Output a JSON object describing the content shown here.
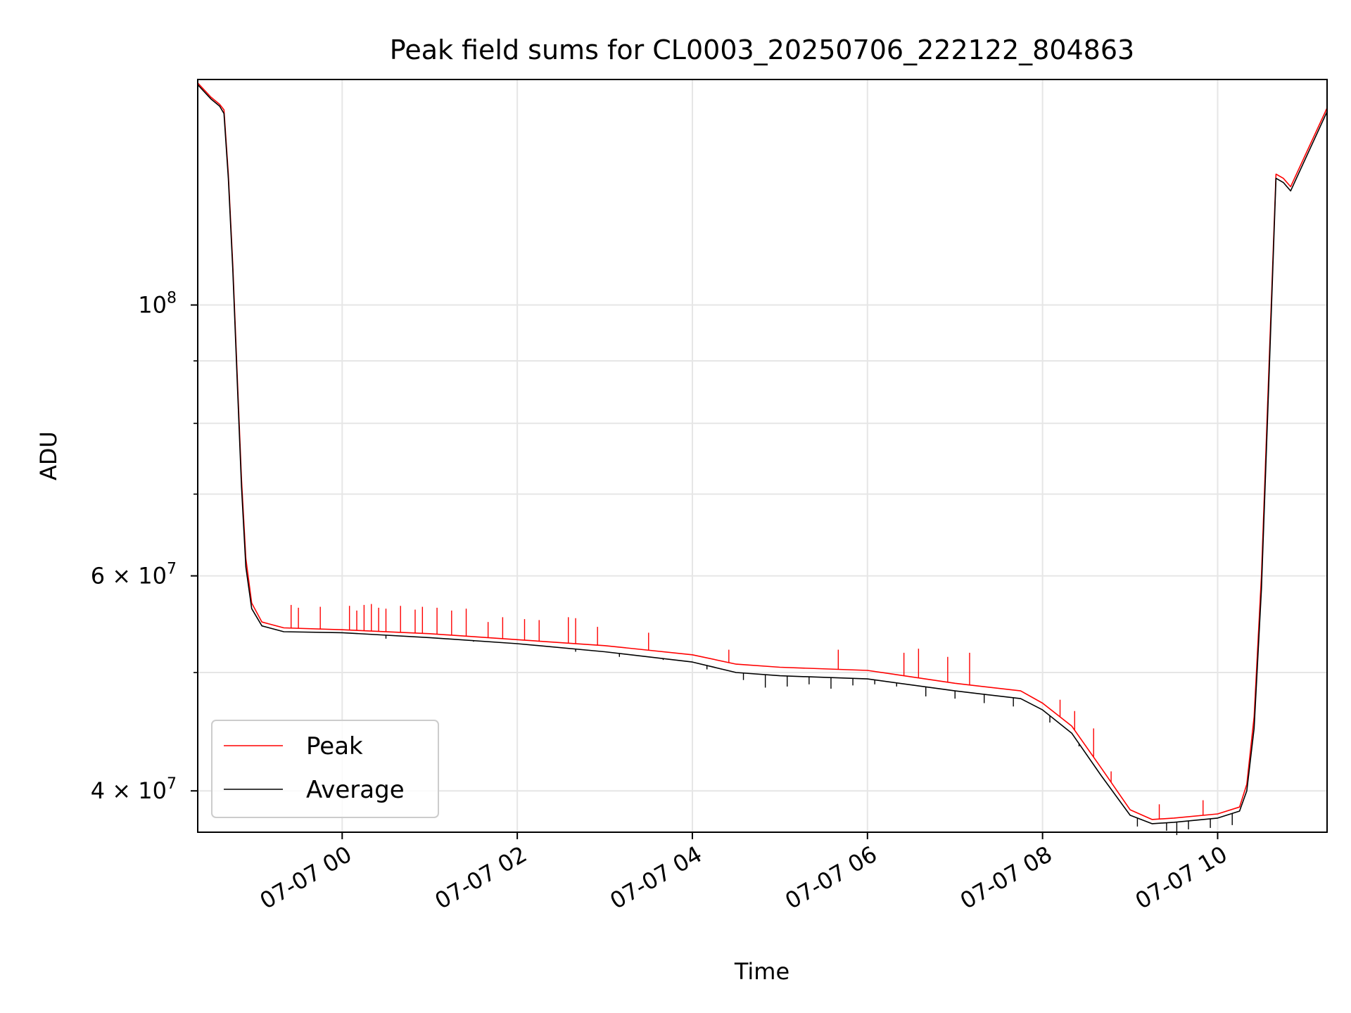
{
  "chart_data": {
    "type": "line",
    "title": "Peak field sums for CL0003_20250706_222122_804863",
    "xlabel": "Time",
    "ylabel": "ADU",
    "yscale": "log",
    "xlim": [
      "2025-07-06 22:21",
      "2025-07-07 11:15"
    ],
    "ylim": [
      37000000,
      153000000
    ],
    "grid": true,
    "legend_position": "lower-left",
    "x_ticks": [
      {
        "value": "2025-07-07 00:00",
        "label": "07-07 00"
      },
      {
        "value": "2025-07-07 02:00",
        "label": "07-07 02"
      },
      {
        "value": "2025-07-07 04:00",
        "label": "07-07 04"
      },
      {
        "value": "2025-07-07 06:00",
        "label": "07-07 06"
      },
      {
        "value": "2025-07-07 08:00",
        "label": "07-07 08"
      },
      {
        "value": "2025-07-07 10:00",
        "label": "07-07 10"
      }
    ],
    "y_major_ticks": [
      {
        "value": 100000000,
        "label_base": "10",
        "label_exp": "8",
        "label_coef": ""
      },
      {
        "value": 60000000,
        "label_base": "10",
        "label_exp": "7",
        "label_coef": "6 × "
      },
      {
        "value": 40000000,
        "label_base": "10",
        "label_exp": "7",
        "label_coef": "4 × "
      }
    ],
    "y_minor_ticks": [
      50000000,
      70000000,
      80000000,
      90000000
    ],
    "series": [
      {
        "name": "Peak",
        "color": "#ff0000",
        "points": [
          [
            "2025-07-06 22:21",
            152000000
          ],
          [
            "2025-07-06 22:30",
            148000000
          ],
          [
            "2025-07-06 22:36",
            146000000
          ],
          [
            "2025-07-06 22:39",
            144500000
          ],
          [
            "2025-07-06 22:42",
            128000000
          ],
          [
            "2025-07-06 22:45",
            108000000
          ],
          [
            "2025-07-06 22:48",
            88000000
          ],
          [
            "2025-07-06 22:51",
            72000000
          ],
          [
            "2025-07-06 22:54",
            62000000
          ],
          [
            "2025-07-06 22:58",
            57000000
          ],
          [
            "2025-07-06 23:05",
            55000000
          ],
          [
            "2025-07-06 23:20",
            54400000
          ],
          [
            "2025-07-07 00:00",
            54200000
          ],
          [
            "2025-07-07 01:00",
            53800000
          ],
          [
            "2025-07-07 02:00",
            53200000
          ],
          [
            "2025-07-07 03:00",
            52600000
          ],
          [
            "2025-07-07 04:00",
            51700000
          ],
          [
            "2025-07-07 04:30",
            50800000
          ],
          [
            "2025-07-07 05:00",
            50500000
          ],
          [
            "2025-07-07 06:00",
            50200000
          ],
          [
            "2025-07-07 07:00",
            49000000
          ],
          [
            "2025-07-07 07:45",
            48300000
          ],
          [
            "2025-07-07 08:00",
            47200000
          ],
          [
            "2025-07-07 08:20",
            45200000
          ],
          [
            "2025-07-07 08:40",
            41800000
          ],
          [
            "2025-07-07 09:00",
            38600000
          ],
          [
            "2025-07-07 09:15",
            37900000
          ],
          [
            "2025-07-07 09:30",
            38000000
          ],
          [
            "2025-07-07 10:00",
            38300000
          ],
          [
            "2025-07-07 10:15",
            38800000
          ],
          [
            "2025-07-07 10:20",
            40500000
          ],
          [
            "2025-07-07 10:25",
            46000000
          ],
          [
            "2025-07-07 10:30",
            60000000
          ],
          [
            "2025-07-07 10:35",
            88000000
          ],
          [
            "2025-07-07 10:40",
            128000000
          ],
          [
            "2025-07-07 10:45",
            127000000
          ],
          [
            "2025-07-07 10:50",
            125000000
          ],
          [
            "2025-07-07 11:15",
            145000000
          ]
        ]
      },
      {
        "name": "Average",
        "color": "#000000",
        "points": [
          [
            "2025-07-06 22:21",
            151500000
          ],
          [
            "2025-07-06 22:30",
            147500000
          ],
          [
            "2025-07-06 22:36",
            145500000
          ],
          [
            "2025-07-06 22:39",
            143500000
          ],
          [
            "2025-07-06 22:42",
            127000000
          ],
          [
            "2025-07-06 22:45",
            107000000
          ],
          [
            "2025-07-06 22:48",
            87000000
          ],
          [
            "2025-07-06 22:51",
            71000000
          ],
          [
            "2025-07-06 22:54",
            61000000
          ],
          [
            "2025-07-06 22:58",
            56400000
          ],
          [
            "2025-07-06 23:05",
            54600000
          ],
          [
            "2025-07-06 23:20",
            54000000
          ],
          [
            "2025-07-07 00:00",
            53900000
          ],
          [
            "2025-07-07 01:00",
            53400000
          ],
          [
            "2025-07-07 02:00",
            52800000
          ],
          [
            "2025-07-07 03:00",
            52000000
          ],
          [
            "2025-07-07 04:00",
            51000000
          ],
          [
            "2025-07-07 04:30",
            50000000
          ],
          [
            "2025-07-07 05:00",
            49700000
          ],
          [
            "2025-07-07 06:00",
            49400000
          ],
          [
            "2025-07-07 07:00",
            48300000
          ],
          [
            "2025-07-07 07:45",
            47600000
          ],
          [
            "2025-07-07 08:00",
            46600000
          ],
          [
            "2025-07-07 08:20",
            44600000
          ],
          [
            "2025-07-07 08:40",
            41200000
          ],
          [
            "2025-07-07 09:00",
            38200000
          ],
          [
            "2025-07-07 09:15",
            37600000
          ],
          [
            "2025-07-07 09:30",
            37700000
          ],
          [
            "2025-07-07 10:00",
            38000000
          ],
          [
            "2025-07-07 10:15",
            38500000
          ],
          [
            "2025-07-07 10:20",
            40000000
          ],
          [
            "2025-07-07 10:25",
            45000000
          ],
          [
            "2025-07-07 10:30",
            58500000
          ],
          [
            "2025-07-07 10:35",
            86000000
          ],
          [
            "2025-07-07 10:40",
            127000000
          ],
          [
            "2025-07-07 10:45",
            126000000
          ],
          [
            "2025-07-07 10:50",
            124000000
          ],
          [
            "2025-07-07 11:15",
            144000000
          ]
        ]
      }
    ],
    "peak_spikes": [
      [
        "2025-07-06 23:25",
        56800000
      ],
      [
        "2025-07-06 23:30",
        56500000
      ],
      [
        "2025-07-06 23:45",
        56600000
      ],
      [
        "2025-07-07 00:05",
        56700000
      ],
      [
        "2025-07-07 00:10",
        56200000
      ],
      [
        "2025-07-07 00:15",
        56800000
      ],
      [
        "2025-07-07 00:20",
        56900000
      ],
      [
        "2025-07-07 00:25",
        56500000
      ],
      [
        "2025-07-07 00:30",
        56400000
      ],
      [
        "2025-07-07 00:40",
        56700000
      ],
      [
        "2025-07-07 00:50",
        56300000
      ],
      [
        "2025-07-07 00:55",
        56600000
      ],
      [
        "2025-07-07 01:05",
        56500000
      ],
      [
        "2025-07-07 01:15",
        56200000
      ],
      [
        "2025-07-07 01:25",
        56400000
      ],
      [
        "2025-07-07 01:40",
        55000000
      ],
      [
        "2025-07-07 01:50",
        55500000
      ],
      [
        "2025-07-07 02:05",
        55300000
      ],
      [
        "2025-07-07 02:15",
        55200000
      ],
      [
        "2025-07-07 02:35",
        55500000
      ],
      [
        "2025-07-07 02:40",
        55400000
      ],
      [
        "2025-07-07 02:55",
        54500000
      ],
      [
        "2025-07-07 03:30",
        53900000
      ],
      [
        "2025-07-07 04:25",
        52200000
      ],
      [
        "2025-07-07 05:40",
        52200000
      ],
      [
        "2025-07-07 06:25",
        51900000
      ],
      [
        "2025-07-07 06:35",
        52300000
      ],
      [
        "2025-07-07 06:55",
        51500000
      ],
      [
        "2025-07-07 07:10",
        51900000
      ],
      [
        "2025-07-07 08:12",
        47500000
      ],
      [
        "2025-07-07 08:22",
        46500000
      ],
      [
        "2025-07-07 08:35",
        45000000
      ],
      [
        "2025-07-07 08:47",
        41500000
      ],
      [
        "2025-07-07 09:20",
        39000000
      ],
      [
        "2025-07-07 09:50",
        39300000
      ]
    ],
    "average_dips": [
      [
        "2025-07-07 00:30",
        53300000
      ],
      [
        "2025-07-07 01:30",
        53000000
      ],
      [
        "2025-07-07 02:40",
        52000000
      ],
      [
        "2025-07-07 03:10",
        51500000
      ],
      [
        "2025-07-07 03:40",
        51200000
      ],
      [
        "2025-07-07 04:10",
        50300000
      ],
      [
        "2025-07-07 04:35",
        49300000
      ],
      [
        "2025-07-07 04:50",
        48600000
      ],
      [
        "2025-07-07 05:05",
        48700000
      ],
      [
        "2025-07-07 05:20",
        48900000
      ],
      [
        "2025-07-07 05:35",
        48500000
      ],
      [
        "2025-07-07 05:50",
        48800000
      ],
      [
        "2025-07-07 06:05",
        48900000
      ],
      [
        "2025-07-07 06:20",
        48700000
      ],
      [
        "2025-07-07 06:40",
        47800000
      ],
      [
        "2025-07-07 07:00",
        47600000
      ],
      [
        "2025-07-07 07:20",
        47200000
      ],
      [
        "2025-07-07 07:40",
        46900000
      ],
      [
        "2025-07-07 08:05",
        45500000
      ],
      [
        "2025-07-07 08:25",
        43500000
      ],
      [
        "2025-07-07 09:05",
        37400000
      ],
      [
        "2025-07-07 09:25",
        37100000
      ],
      [
        "2025-07-07 09:32",
        36800000
      ],
      [
        "2025-07-07 09:40",
        37200000
      ],
      [
        "2025-07-07 09:55",
        37300000
      ],
      [
        "2025-07-07 10:10",
        37500000
      ]
    ]
  }
}
